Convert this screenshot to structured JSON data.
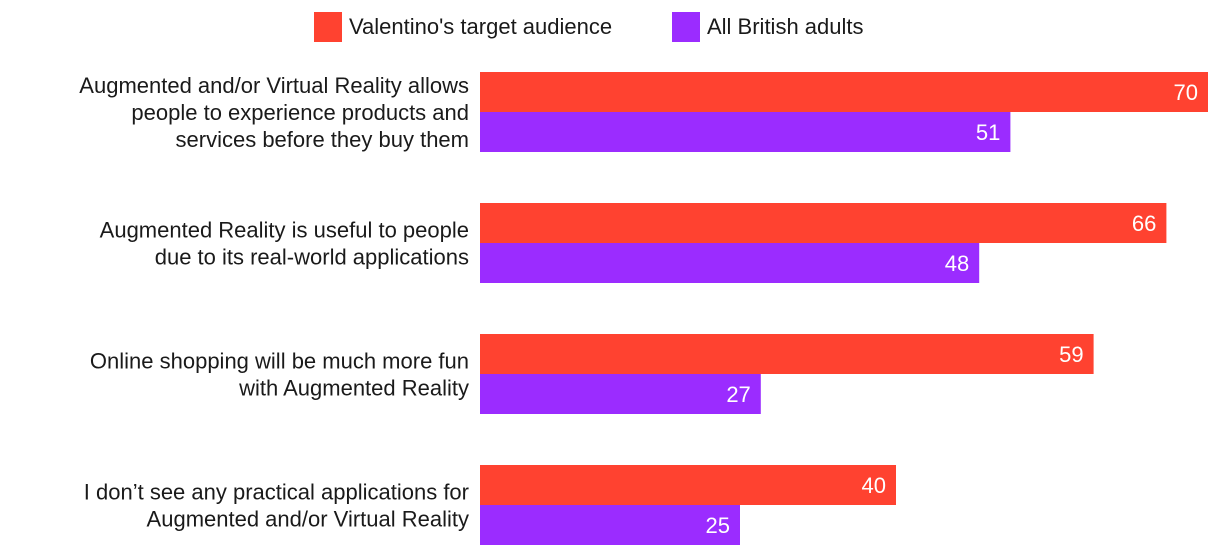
{
  "chart_data": {
    "type": "bar",
    "orientation": "horizontal",
    "categories": [
      [
        "Augmented and/or Virtual Reality allows",
        "people to experience products and",
        "services before they buy them"
      ],
      [
        "Augmented Reality is useful to people",
        "due to its real-world applications"
      ],
      [
        "Online shopping will be much more fun",
        "with Augmented Reality"
      ],
      [
        "I don’t see any practical applications for",
        "Augmented and/or Virtual Reality"
      ]
    ],
    "series": [
      {
        "name": "Valentino's target audience",
        "color": "#ff4230",
        "values": [
          70,
          66,
          59,
          40
        ]
      },
      {
        "name": "All British adults",
        "color": "#9b2cff",
        "values": [
          51,
          48,
          27,
          25
        ]
      }
    ],
    "xlim": [
      0,
      70
    ],
    "legend_position": "top",
    "grid": false,
    "data_labels": true
  }
}
